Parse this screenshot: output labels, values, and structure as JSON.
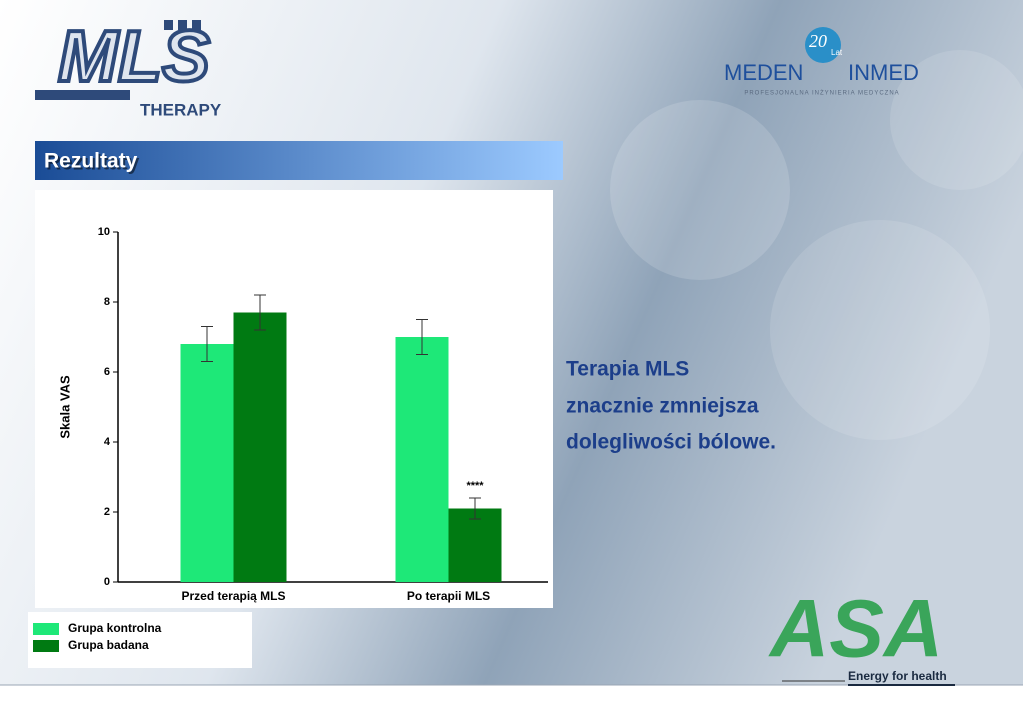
{
  "header": {
    "logo": "MLS",
    "logo_sub": "THERAPY",
    "partner_left": "MEDEN",
    "partner_right": "INMED",
    "partner_badge": "20",
    "partner_badge_sub": "Lat",
    "partner_tagline": "PROFESJONALNA INŻYNIERIA MEDYCZNA"
  },
  "section_title": "Rezultaty",
  "text_lines": [
    "Terapia MLS",
    "znacznie zmniejsza",
    "dolegliwości bólowe."
  ],
  "chart_data": {
    "type": "bar",
    "y_label": "Skala VAS",
    "categories": [
      "Przed terapią MLS",
      "Po terapii MLS"
    ],
    "series": [
      {
        "name": "Grupa kontrolna",
        "color": "#1ee878",
        "values": [
          6.8,
          7.0
        ],
        "errors": [
          0.5,
          0.5
        ]
      },
      {
        "name": "Grupa badana",
        "color": "#007a12",
        "values": [
          7.7,
          2.1
        ],
        "errors": [
          0.5,
          0.3
        ]
      }
    ],
    "annotations": [
      "****"
    ],
    "ylim": [
      0,
      10
    ],
    "yticks": [
      0,
      2,
      4,
      6,
      8,
      10
    ]
  },
  "footer": {
    "logo": "ASA",
    "logo_sub": "Energy for health"
  }
}
